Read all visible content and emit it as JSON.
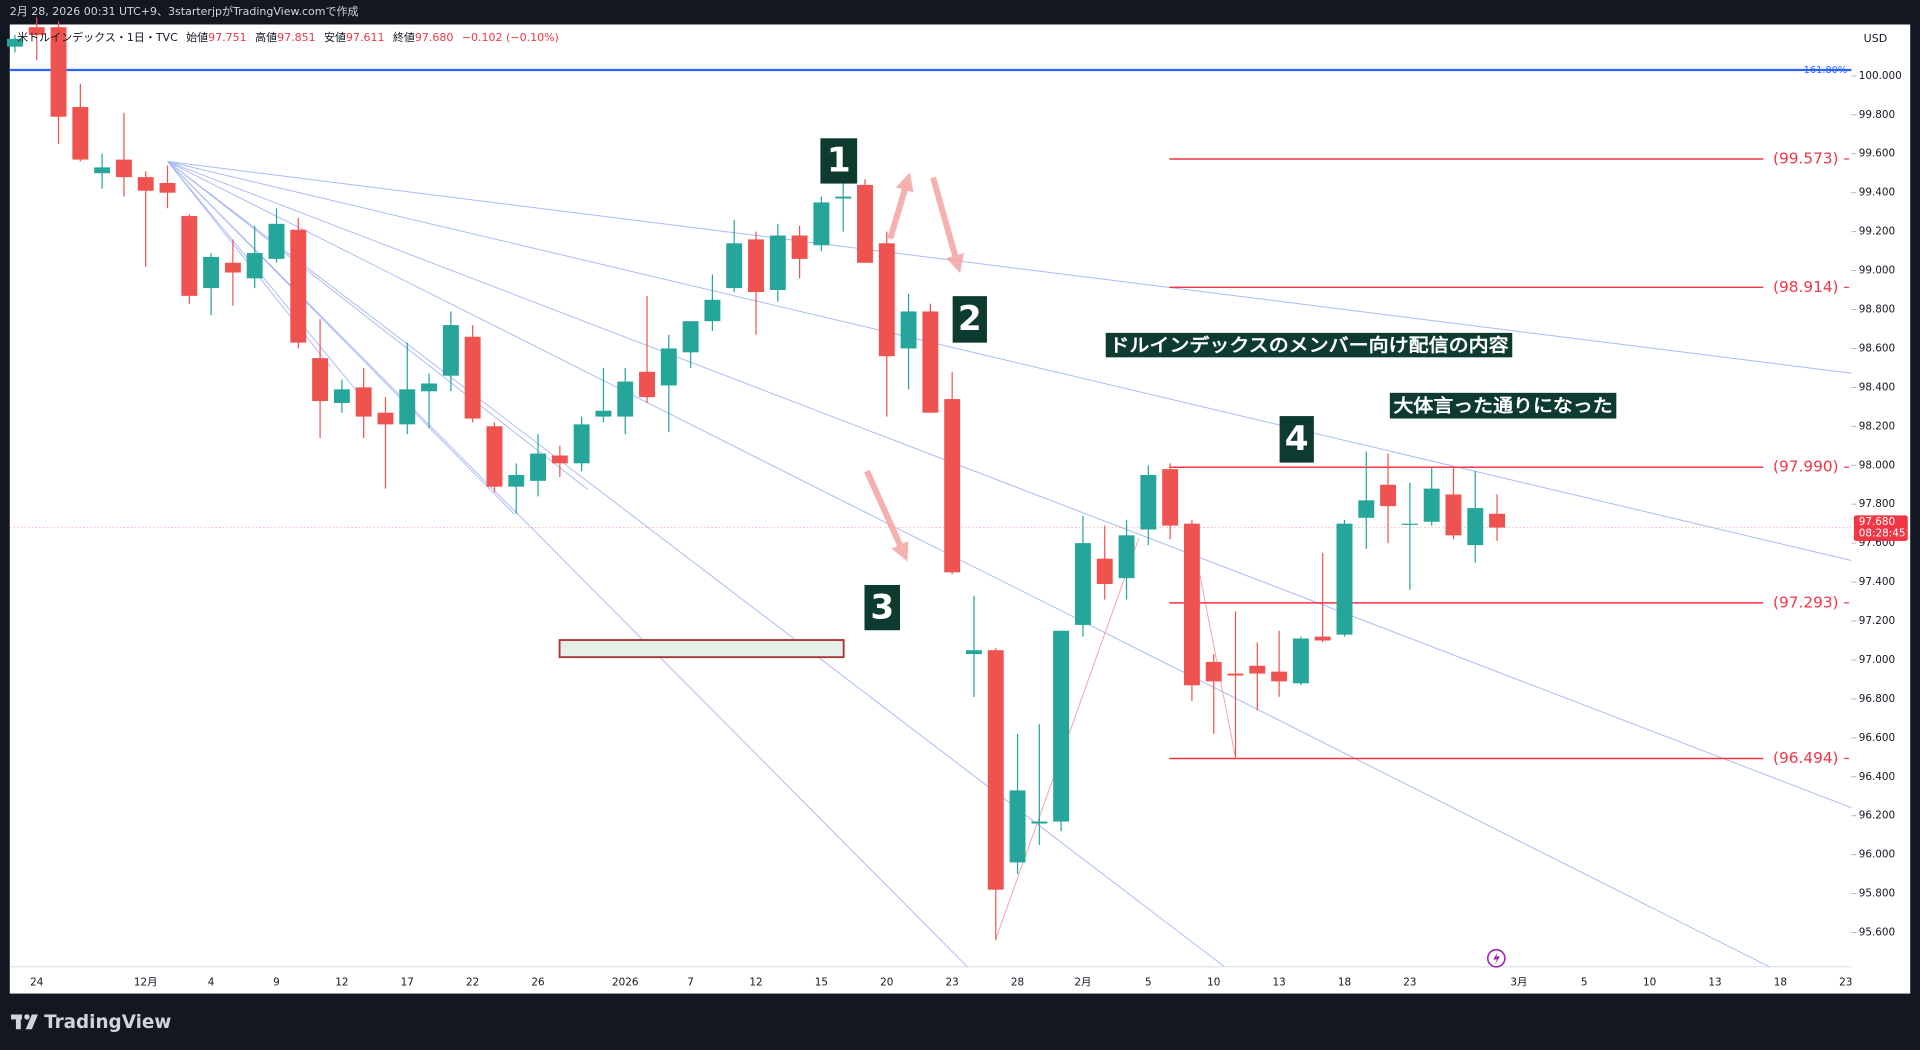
{
  "header": {
    "created": "2月 28, 2026 00:31 UTC+9、3starterjpがTradingView.comで作成"
  },
  "footer": {
    "brand": "TradingView"
  },
  "chart_data": {
    "type": "candlestick",
    "ohlc_legend": {
      "symbol": "米ドルインデックス・1日・TVC",
      "open_label": "始値",
      "open": "97.751",
      "high_label": "高値",
      "high": "97.851",
      "low_label": "安値",
      "low": "97.611",
      "close_label": "終値",
      "close": "97.680",
      "change": "−0.102 (−0.10%)"
    },
    "currency": "USD",
    "categories": [
      null,
      "24",
      null,
      null,
      null,
      null,
      "12月",
      null,
      null,
      "4",
      null,
      null,
      "9",
      null,
      null,
      "12",
      null,
      null,
      "17",
      null,
      null,
      "22",
      null,
      null,
      "26",
      null,
      null,
      null,
      "2026",
      null,
      null,
      "7",
      null,
      null,
      "12",
      null,
      null,
      "15",
      null,
      null,
      "20",
      null,
      null,
      "23",
      null,
      null,
      "28",
      null,
      null,
      "2月",
      null,
      null,
      "5",
      null,
      null,
      "10",
      null,
      null,
      "13",
      null,
      null,
      "18",
      null,
      null,
      "23",
      null,
      null,
      null,
      null,
      "3月",
      null,
      null,
      "5",
      null,
      null,
      "10",
      null,
      null,
      "13",
      null,
      null,
      "18",
      null,
      null,
      "23"
    ],
    "open": [
      100.15,
      100.25,
      100.25,
      99.84,
      99.5,
      99.57,
      99.48,
      99.45,
      99.28,
      98.91,
      99.04,
      98.96,
      99.06,
      99.21,
      98.55,
      98.32,
      98.4,
      98.27,
      98.21,
      98.38,
      98.46,
      98.66,
      98.2,
      97.89,
      97.92,
      98.05,
      98.01,
      98.25,
      98.25,
      98.48,
      98.41,
      98.58,
      98.74,
      98.91,
      99.16,
      98.9,
      99.18,
      99.13,
      99.37,
      99.44,
      99.14,
      98.6,
      98.79,
      98.34,
      97.03,
      97.05,
      95.96,
      96.16,
      96.17,
      97.18,
      97.52,
      97.42,
      97.67,
      97.98,
      97.7,
      96.99,
      96.93,
      96.97,
      96.94,
      96.88,
      97.12,
      97.13,
      97.73,
      97.9,
      97.7,
      97.71,
      97.85,
      97.59,
      97.751,
      null,
      null,
      null,
      null,
      null,
      null,
      null,
      null,
      null,
      null,
      null,
      null,
      null,
      null,
      null,
      null
    ],
    "high": [
      100.21,
      100.3,
      100.28,
      99.96,
      99.6,
      99.81,
      99.51,
      99.54,
      99.29,
      99.09,
      99.16,
      99.23,
      99.32,
      99.27,
      98.75,
      98.44,
      98.5,
      98.35,
      98.63,
      98.47,
      98.79,
      98.72,
      98.22,
      98.01,
      98.16,
      98.1,
      98.25,
      98.5,
      98.5,
      98.87,
      98.67,
      98.74,
      98.98,
      99.26,
      99.2,
      99.24,
      99.23,
      99.38,
      99.48,
      99.47,
      99.2,
      98.88,
      98.83,
      98.48,
      97.33,
      97.06,
      96.62,
      96.67,
      97.15,
      97.74,
      97.69,
      97.72,
      98.0,
      98.01,
      97.72,
      97.03,
      97.25,
      97.09,
      97.15,
      97.12,
      97.55,
      97.72,
      98.07,
      98.06,
      97.91,
      97.99,
      97.99,
      97.97,
      97.851,
      null,
      null,
      null,
      null,
      null,
      null,
      null,
      null,
      null,
      null,
      null,
      null,
      null,
      null,
      null,
      null
    ],
    "low": [
      100.12,
      100.08,
      99.65,
      99.56,
      99.42,
      99.38,
      99.02,
      99.32,
      98.83,
      98.77,
      98.82,
      98.91,
      99.04,
      98.6,
      98.14,
      98.27,
      98.14,
      97.88,
      98.16,
      98.19,
      98.38,
      98.22,
      97.86,
      97.75,
      97.84,
      97.94,
      97.97,
      98.22,
      98.16,
      98.32,
      98.17,
      98.5,
      98.69,
      98.89,
      98.67,
      98.84,
      98.96,
      99.1,
      99.2,
      99.04,
      98.25,
      98.39,
      98.27,
      97.44,
      96.81,
      95.56,
      95.9,
      96.05,
      96.12,
      97.12,
      97.31,
      97.31,
      97.59,
      97.62,
      96.79,
      96.62,
      96.49,
      96.74,
      96.81,
      96.87,
      97.09,
      97.12,
      97.57,
      97.6,
      97.36,
      97.69,
      97.62,
      97.5,
      97.611,
      null,
      null,
      null,
      null,
      null,
      null,
      null,
      null,
      null,
      null,
      null,
      null,
      null,
      null,
      null,
      null
    ],
    "close": [
      100.19,
      100.21,
      99.79,
      99.57,
      99.53,
      99.48,
      99.41,
      99.4,
      98.87,
      99.07,
      98.99,
      99.09,
      99.24,
      98.63,
      98.33,
      98.39,
      98.25,
      98.21,
      98.39,
      98.42,
      98.72,
      98.24,
      97.89,
      97.95,
      98.06,
      98.01,
      98.21,
      98.28,
      98.43,
      98.35,
      98.6,
      98.74,
      98.85,
      99.14,
      98.89,
      99.18,
      99.06,
      99.35,
      99.38,
      99.04,
      98.56,
      98.79,
      98.27,
      97.45,
      97.05,
      95.82,
      96.33,
      96.17,
      97.15,
      97.6,
      97.39,
      97.64,
      97.95,
      97.69,
      96.87,
      96.89,
      96.92,
      96.93,
      96.89,
      97.11,
      97.1,
      97.7,
      97.82,
      97.79,
      97.7,
      97.88,
      97.64,
      97.78,
      97.68,
      null,
      null,
      null,
      null,
      null,
      null,
      null,
      null,
      null,
      null,
      null,
      null,
      null,
      null,
      null,
      null
    ],
    "up_color": "#26a69a",
    "down_color": "#ef5350",
    "ylim": [
      95.424,
      100.264
    ],
    "yticks": [
      {
        "value": 100,
        "label": "100.000"
      },
      {
        "value": 99.8,
        "label": "99.800"
      },
      {
        "value": 99.6,
        "label": "99.600"
      },
      {
        "value": 99.4,
        "label": "99.400"
      },
      {
        "value": 99.2,
        "label": "99.200"
      },
      {
        "value": 99,
        "label": "99.000"
      },
      {
        "value": 98.8,
        "label": "98.800"
      },
      {
        "value": 98.6,
        "label": "98.600"
      },
      {
        "value": 98.4,
        "label": "98.400"
      },
      {
        "value": 98.2,
        "label": "98.200"
      },
      {
        "value": 98,
        "label": "98.000"
      },
      {
        "value": 97.8,
        "label": "97.800"
      },
      {
        "value": 97.6,
        "label": "97.600"
      },
      {
        "value": 97.4,
        "label": "97.400"
      },
      {
        "value": 97.2,
        "label": "97.200"
      },
      {
        "value": 97,
        "label": "97.000"
      },
      {
        "value": 96.8,
        "label": "96.800"
      },
      {
        "value": 96.6,
        "label": "96.600"
      },
      {
        "value": 96.4,
        "label": "96.400"
      },
      {
        "value": 96.2,
        "label": "96.200"
      },
      {
        "value": 96,
        "label": "96.000"
      },
      {
        "value": 95.8,
        "label": "95.800"
      },
      {
        "value": 95.6,
        "label": "95.600"
      }
    ],
    "grid": false,
    "fib_line": {
      "value": 100.03,
      "label": "161.80%",
      "color": "#2962ff"
    },
    "levels": [
      {
        "value": 99.573,
        "label": "(99.573)"
      },
      {
        "value": 98.914,
        "label": "(98.914)"
      },
      {
        "value": 97.99,
        "label": "(97.990)"
      },
      {
        "value": 97.293,
        "label": "(97.293)"
      },
      {
        "value": 96.494,
        "label": "(96.494)"
      }
    ],
    "level_color": "#f23645",
    "last_price": {
      "value": 97.68,
      "label": "97.680",
      "countdown": "08:28:45"
    },
    "annotations": [
      {
        "text": "1"
      },
      {
        "text": "2"
      },
      {
        "text": "3"
      },
      {
        "text": "4"
      },
      {
        "text": "ドルインデックスのメンバー向け配信の内容"
      },
      {
        "text": "大体言った通りになった"
      }
    ]
  }
}
